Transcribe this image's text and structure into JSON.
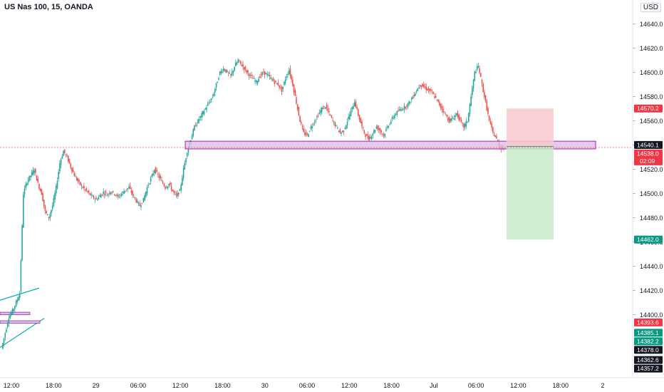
{
  "header": {
    "symbol_title": "US Nas 100, 15, OANDA",
    "currency": "USD"
  },
  "colors": {
    "up": "#26a69a",
    "down": "#ef5350",
    "zone": "#e1bee7",
    "zone_border": "#9c27b0",
    "stop": "#f8c8cb",
    "target": "#c8ebc9",
    "price_red": "#f23645",
    "price_green": "#089981",
    "text": "#131722"
  },
  "chart_data": {
    "type": "candlestick",
    "title": "US Nas 100, 15, OANDA",
    "ylim": [
      14355,
      14648
    ],
    "y_ticks": [
      14640.0,
      14620.0,
      14600.0,
      14580.0,
      14560.0,
      14540.0,
      14520.0,
      14500.0,
      14480.0,
      14460.0,
      14440.0,
      14420.0,
      14400.0
    ],
    "x_ticks": [
      "12:00",
      "18:00",
      "29",
      "06:00",
      "12:00",
      "18:00",
      "30",
      "06:00",
      "12:00",
      "18:00",
      "Jul",
      "06:00",
      "12:00",
      "18:00",
      "2"
    ],
    "price_labels": [
      {
        "value": "14570.2",
        "kind": "red"
      },
      {
        "value": "14540.1",
        "kind": "dark"
      },
      {
        "value": "14538.0",
        "kind": "red",
        "sub": "02:09"
      },
      {
        "value": "14462.0",
        "kind": "green"
      },
      {
        "value": "14393.6",
        "kind": "red"
      },
      {
        "value": "14385.1",
        "kind": "green"
      },
      {
        "value": "14382.2",
        "kind": "green"
      },
      {
        "value": "14378.0",
        "kind": "dark"
      },
      {
        "value": "14362.6",
        "kind": "dark"
      },
      {
        "value": "14357.2",
        "kind": "dark"
      }
    ],
    "current_price": 14538.0,
    "zone": {
      "low": 14538.0,
      "high": 14542.0
    },
    "position": {
      "entry": 14540.1,
      "stop": 14570.2,
      "target": 14462.0
    },
    "grid": false,
    "series_path": [
      14372,
      14385,
      14398,
      14403,
      14410,
      14418,
      14500,
      14510,
      14515,
      14520,
      14508,
      14500,
      14485,
      14480,
      14490,
      14505,
      14525,
      14535,
      14530,
      14522,
      14515,
      14510,
      14506,
      14503,
      14500,
      14497,
      14495,
      14498,
      14501,
      14499,
      14502,
      14500,
      14497,
      14500,
      14503,
      14505,
      14499,
      14494,
      14490,
      14495,
      14505,
      14512,
      14520,
      14515,
      14510,
      14505,
      14508,
      14502,
      14498,
      14502,
      14520,
      14535,
      14545,
      14555,
      14560,
      14565,
      14570,
      14575,
      14580,
      14590,
      14600,
      14603,
      14600,
      14597,
      14605,
      14610,
      14606,
      14602,
      14598,
      14595,
      14592,
      14597,
      14600,
      14598,
      14595,
      14592,
      14590,
      14585,
      14595,
      14602,
      14590,
      14575,
      14560,
      14550,
      14548,
      14555,
      14560,
      14565,
      14570,
      14572,
      14566,
      14560,
      14555,
      14550,
      14552,
      14560,
      14568,
      14576,
      14565,
      14555,
      14548,
      14545,
      14550,
      14555,
      14552,
      14548,
      14555,
      14560,
      14565,
      14568,
      14570,
      14572,
      14575,
      14580,
      14585,
      14590,
      14588,
      14586,
      14584,
      14580,
      14575,
      14570,
      14565,
      14560,
      14562,
      14566,
      14560,
      14555,
      14560,
      14580,
      14600,
      14605,
      14590,
      14575,
      14560,
      14550,
      14545,
      14538,
      14538
    ]
  }
}
